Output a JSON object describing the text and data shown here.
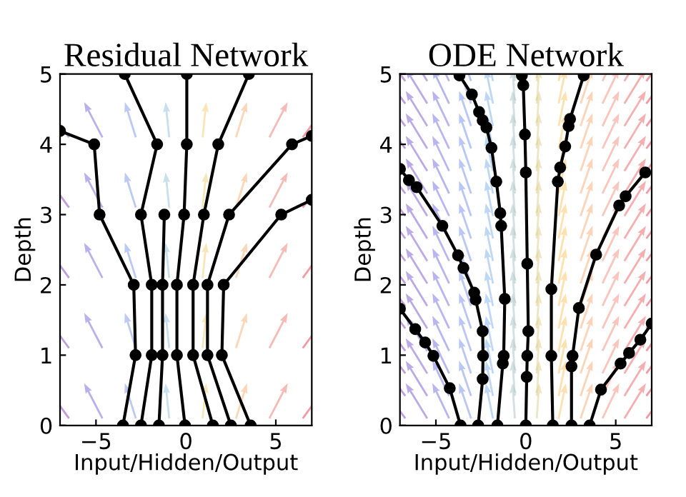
{
  "chart_data": [
    {
      "type": "line",
      "title": "Residual Network",
      "xlabel": "Input/Hidden/Output",
      "ylabel": "Depth",
      "xlim": [
        -7,
        7
      ],
      "ylim": [
        0,
        5
      ],
      "xticks": [
        {
          "value": -5,
          "label": "−5"
        },
        0,
        5
      ],
      "yticks": [
        0,
        1,
        2,
        3,
        4,
        5
      ],
      "marker": "circle",
      "line_style": "solid",
      "series": [
        {
          "color": "#000000",
          "x": [
            -3.5,
            -2.8,
            -2.9,
            -4.8,
            -5.1,
            -7
          ],
          "values": [
            0,
            1,
            2,
            3,
            4,
            4.19
          ]
        },
        {
          "color": "#000000",
          "x": [
            -2.5,
            -1.9,
            -1.9,
            -2.5,
            -1.6,
            -3.4
          ],
          "values": [
            0,
            1,
            2,
            3,
            4,
            5
          ]
        },
        {
          "color": "#000000",
          "x": [
            -1.5,
            -1.3,
            -1.3,
            -1.2
          ],
          "values": [
            0,
            1,
            2,
            3
          ]
        },
        {
          "color": "#000000",
          "x": [
            -0.05,
            -0.5,
            -0.5,
            -0.1,
            0.05,
            0.05
          ],
          "values": [
            0,
            1,
            2,
            3,
            4,
            5
          ]
        },
        {
          "color": "#000000",
          "x": [
            1.5,
            0.4,
            0.4,
            1.0,
            1.8,
            3.5
          ],
          "values": [
            0,
            1,
            2,
            3,
            4,
            5
          ]
        },
        {
          "color": "#000000",
          "x": [
            2.5,
            1.2,
            1.2,
            2.4,
            5.9,
            7
          ],
          "values": [
            0,
            1,
            2,
            3,
            4,
            4.12
          ]
        },
        {
          "color": "#000000",
          "x": [
            3.6,
            2.0,
            2.1,
            5.3,
            7
          ],
          "values": [
            0,
            1,
            2,
            3,
            3.21
          ]
        }
      ]
    },
    {
      "type": "line",
      "title": "ODE Network",
      "xlabel": "Input/Hidden/Output",
      "ylabel": "Depth",
      "xlim": [
        -7,
        7
      ],
      "ylim": [
        0,
        5
      ],
      "xticks": [
        {
          "value": -5,
          "label": "−5"
        },
        0,
        5
      ],
      "yticks": [
        0,
        1,
        2,
        3,
        4,
        5
      ],
      "marker": "circle",
      "line_style": "solid",
      "series": [
        {
          "color": "#000000",
          "x": [
            -3.63,
            -4.23,
            -5.14,
            -5.6,
            -6.15,
            -7
          ],
          "values": [
            0,
            0.53,
            0.99,
            1.18,
            1.37,
            1.66
          ]
        },
        {
          "color": "#000000",
          "x": [
            -2.65,
            -2.4,
            -2.38,
            -2.4,
            -2.79,
            -2.87,
            -3.47,
            -3.77,
            -4.64,
            -6.07,
            -6.5,
            -7
          ],
          "values": [
            0,
            0.66,
            0.99,
            1.34,
            1.79,
            1.89,
            2.24,
            2.42,
            2.84,
            3.39,
            3.49,
            3.65
          ]
        },
        {
          "color": "#000000",
          "x": [
            -1.58,
            -1.28,
            -1.23,
            -1.17,
            -1.37,
            -1.42,
            -1.64,
            -1.91,
            -2.19,
            -2.4,
            -2.6,
            -3.0,
            -3.69
          ],
          "values": [
            0,
            0.88,
            0.99,
            1.8,
            2.84,
            3.02,
            3.47,
            3.95,
            4.24,
            4.34,
            4.46,
            4.71,
            4.98
          ]
        },
        {
          "color": "#000000",
          "x": [
            0,
            0.05,
            0.08,
            0.14,
            0.08,
            0,
            -0.05,
            -0.14,
            -0.22
          ],
          "values": [
            0,
            0.69,
            0.99,
            1.34,
            2.3,
            3.6,
            4.14,
            4.84,
            4.98
          ]
        },
        {
          "color": "#000000",
          "x": [
            1.5,
            1.42,
            1.42,
            1.78,
            1.91,
            2.19,
            2.38,
            2.46,
            3.22
          ],
          "values": [
            0,
            0.99,
            1.94,
            3.47,
            3.67,
            3.97,
            4.26,
            4.36,
            4.98
          ]
        },
        {
          "color": "#000000",
          "x": [
            2.54,
            2.54,
            2.6,
            2.95,
            3.91,
            5.19,
            5.55,
            6.64
          ],
          "values": [
            0,
            0.84,
            0.99,
            1.67,
            2.43,
            3.13,
            3.26,
            3.6
          ]
        },
        {
          "color": "#000000",
          "x": [
            3.55,
            4.18,
            5.27,
            5.74,
            6.37,
            7
          ],
          "values": [
            0,
            0.51,
            0.88,
            1.03,
            1.22,
            1.45
          ]
        }
      ]
    }
  ]
}
